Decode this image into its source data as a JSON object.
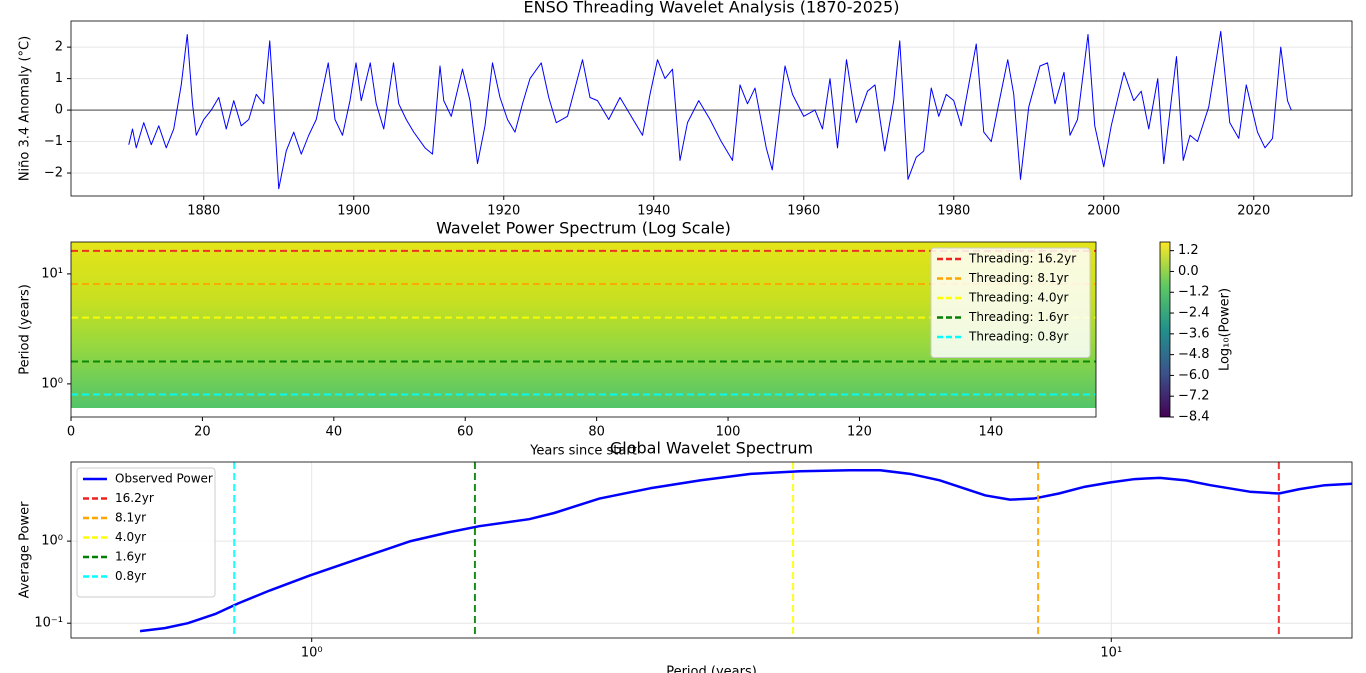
{
  "chart_data": [
    {
      "type": "line",
      "title": "ENSO Threading Wavelet Analysis (1870-2025)",
      "ylabel": "Niño 3.4 Anomaly (°C)",
      "x": [
        1870,
        1870.5,
        1871,
        1872,
        1873,
        1874,
        1875,
        1876,
        1877,
        1877.8,
        1878.5,
        1879,
        1880,
        1881,
        1882,
        1883,
        1884,
        1885,
        1886,
        1887,
        1888,
        1888.8,
        1889.3,
        1890,
        1891,
        1892,
        1893,
        1894,
        1895,
        1896.6,
        1897.5,
        1898.5,
        1899.5,
        1900.3,
        1901,
        1902.2,
        1903,
        1904,
        1905.3,
        1906,
        1907,
        1908,
        1909.5,
        1910.5,
        1911.5,
        1912,
        1913,
        1914.5,
        1915.5,
        1916.5,
        1917.5,
        1918.5,
        1919.5,
        1920.5,
        1921.5,
        1922.5,
        1923.5,
        1925,
        1926,
        1927,
        1928.5,
        1930.5,
        1931.5,
        1932.5,
        1934,
        1935.5,
        1937,
        1938.5,
        1939.5,
        1940.5,
        1941.5,
        1942.5,
        1943.5,
        1944.5,
        1946,
        1947.5,
        1949,
        1950.5,
        1951.5,
        1952.5,
        1953.5,
        1955,
        1955.8,
        1957.5,
        1958.5,
        1960,
        1961.5,
        1962.5,
        1963.5,
        1964.5,
        1965.7,
        1967,
        1968.5,
        1969.5,
        1970.8,
        1972,
        1972.8,
        1973.9,
        1975,
        1976,
        1977,
        1978,
        1979,
        1980,
        1981,
        1982,
        1983,
        1984,
        1985,
        1986,
        1987.2,
        1988,
        1988.9,
        1990,
        1991.5,
        1992.5,
        1993.5,
        1994.7,
        1995.5,
        1996.5,
        1997.9,
        1998.8,
        2000,
        2001,
        2002.7,
        2004,
        2005,
        2006,
        2007.2,
        2008,
        2009.7,
        2010.6,
        2011.5,
        2012.5,
        2014,
        2015.6,
        2016.8,
        2018,
        2019,
        2020.5,
        2021.5,
        2022.5,
        2023.6,
        2024.5,
        2025
      ],
      "series": [
        {
          "color": "#0000ff",
          "values": [
            -1.1,
            -0.6,
            -1.2,
            -0.4,
            -1.1,
            -0.5,
            -1.2,
            -0.6,
            0.8,
            2.4,
            0.2,
            -0.8,
            -0.3,
            0,
            0.4,
            -0.6,
            0.3,
            -0.5,
            -0.3,
            0.5,
            0.2,
            2.2,
            0.3,
            -2.5,
            -1.3,
            -0.7,
            -1.4,
            -0.8,
            -0.3,
            1.5,
            -0.3,
            -0.8,
            0.3,
            1.5,
            0.3,
            1.5,
            0.2,
            -0.6,
            1.5,
            0.2,
            -0.3,
            -0.7,
            -1.2,
            -1.4,
            1.4,
            0.3,
            -0.2,
            1.3,
            0.3,
            -1.7,
            -0.5,
            1.5,
            0.4,
            -0.3,
            -0.7,
            0.2,
            1.0,
            1.5,
            0.4,
            -0.4,
            -0.2,
            1.6,
            0.4,
            0.3,
            -0.3,
            0.4,
            -0.2,
            -0.8,
            0.5,
            1.6,
            1.0,
            1.3,
            -1.6,
            -0.4,
            0.3,
            -0.3,
            -1.0,
            -1.6,
            0.8,
            0.2,
            0.7,
            -1.2,
            -1.9,
            1.4,
            0.5,
            -0.2,
            0,
            -0.6,
            1.0,
            -1.2,
            1.6,
            -0.4,
            0.6,
            0.8,
            -1.3,
            0.3,
            2.2,
            -2.2,
            -1.5,
            -1.3,
            0.7,
            -0.2,
            0.5,
            0.3,
            -0.5,
            0.8,
            2.1,
            -0.7,
            -1.0,
            0.2,
            1.6,
            0.5,
            -2.2,
            0.1,
            1.4,
            1.5,
            0.2,
            1.2,
            -0.8,
            -0.3,
            2.4,
            -0.5,
            -1.8,
            -0.5,
            1.2,
            0.3,
            0.6,
            -0.6,
            1.0,
            -1.7,
            1.7,
            -1.6,
            -0.8,
            -1.0,
            0.1,
            2.5,
            -0.4,
            -0.9,
            0.8,
            -0.7,
            -1.2,
            -0.9,
            2.0,
            0.3,
            0.0
          ]
        }
      ],
      "reference_line": 0,
      "reference_color": "#808080",
      "xlim": [
        1862.3,
        2033.1
      ],
      "ylim": [
        -2.73,
        2.83
      ],
      "xticks": [
        1880,
        1900,
        1920,
        1940,
        1960,
        1980,
        2000,
        2020
      ],
      "yticks": [
        {
          "value": -2,
          "label": "−2"
        },
        {
          "value": -1,
          "label": "−1"
        },
        0,
        1,
        2
      ],
      "grid": true
    },
    {
      "type": "heatmap",
      "title": "Wavelet Power Spectrum (Log Scale)",
      "xlabel": "Years since start",
      "ylabel": "Period (years)",
      "xlim": [
        0,
        156
      ],
      "ylim": [
        0.5,
        19.5
      ],
      "ylog": true,
      "xticks": [
        0,
        20,
        40,
        60,
        80,
        100,
        120,
        140
      ],
      "yticks": [
        {
          "value": 1,
          "label": "10⁰"
        },
        {
          "value": 10,
          "label": "10¹"
        }
      ],
      "hlines": [
        {
          "name": "Threading: 16.2yr",
          "value": 16.2,
          "color": "#ee2222"
        },
        {
          "name": "Threading: 8.1yr",
          "value": 8.1,
          "color": "#ffa500"
        },
        {
          "name": "Threading: 4.0yr",
          "value": 4.0,
          "color": "#ffff00"
        },
        {
          "name": "Threading: 1.6yr",
          "value": 1.6,
          "color": "#008000"
        },
        {
          "name": "Threading: 0.8yr",
          "value": 0.8,
          "color": "#00ffff"
        }
      ],
      "legend": "upper right",
      "colorbar": {
        "label": "Log₁₀(Power)",
        "clim": [
          -8.4,
          1.7
        ],
        "ticks": [
          1.2,
          {
            "value": 0,
            "label": "0.0"
          },
          {
            "value": -1.2,
            "label": "−1.2"
          },
          {
            "value": -2.4,
            "label": "−2.4"
          },
          {
            "value": -3.6,
            "label": "−3.6"
          },
          {
            "value": -4.8,
            "label": "−4.8"
          },
          {
            "value": -6.0,
            "label": "−6.0"
          },
          {
            "value": -7.2,
            "label": "−7.2"
          },
          {
            "value": -8.4,
            "label": "−8.4"
          }
        ]
      }
    },
    {
      "type": "line",
      "title": "Global Wavelet Spectrum",
      "xlabel": "Period (years)",
      "ylabel": "Average Power",
      "xlog": true,
      "ylog": true,
      "x": [
        0.61,
        0.655,
        0.7,
        0.757,
        0.81,
        0.886,
        0.994,
        1.15,
        1.33,
        1.49,
        1.62,
        1.87,
        2.01,
        2.29,
        2.65,
        3.06,
        3.54,
        4.08,
        4.71,
        5.14,
        5.6,
        6.1,
        6.96,
        7.47,
        8.0,
        8.6,
        9.27,
        9.98,
        10.7,
        11.5,
        12.4,
        13.3,
        14.9,
        16.2,
        17.2,
        18.5,
        20
      ],
      "series": [
        {
          "name": "Observed Power",
          "color": "#0000ff",
          "values": [
            0.08,
            0.087,
            0.1,
            0.129,
            0.175,
            0.25,
            0.38,
            0.62,
            1.0,
            1.29,
            1.52,
            1.85,
            2.2,
            3.3,
            4.4,
            5.5,
            6.6,
            7.1,
            7.3,
            7.3,
            6.6,
            5.5,
            3.6,
            3.2,
            3.3,
            3.8,
            4.6,
            5.2,
            5.7,
            5.9,
            5.5,
            4.8,
            4.0,
            3.8,
            4.3,
            4.8,
            5.0
          ]
        }
      ],
      "vlines": [
        {
          "name": "16.2yr",
          "value": 16.2,
          "color": "#ee2222"
        },
        {
          "name": "8.1yr",
          "value": 8.1,
          "color": "#ffa500"
        },
        {
          "name": "4.0yr",
          "value": 4.0,
          "color": "#ffff00"
        },
        {
          "name": "1.6yr",
          "value": 1.6,
          "color": "#008000"
        },
        {
          "name": "0.8yr",
          "value": 0.8,
          "color": "#00ffff"
        }
      ],
      "xlim": [
        0.5,
        20
      ],
      "ylim": [
        0.066,
        9.2
      ],
      "xticks": [
        {
          "value": 1,
          "label": "10⁰"
        },
        {
          "value": 10,
          "label": "10¹"
        }
      ],
      "yticks": [
        {
          "value": 0.1,
          "label": "10⁻¹"
        },
        {
          "value": 1,
          "label": "10⁰"
        }
      ],
      "legend": "upper left",
      "grid": true
    }
  ]
}
